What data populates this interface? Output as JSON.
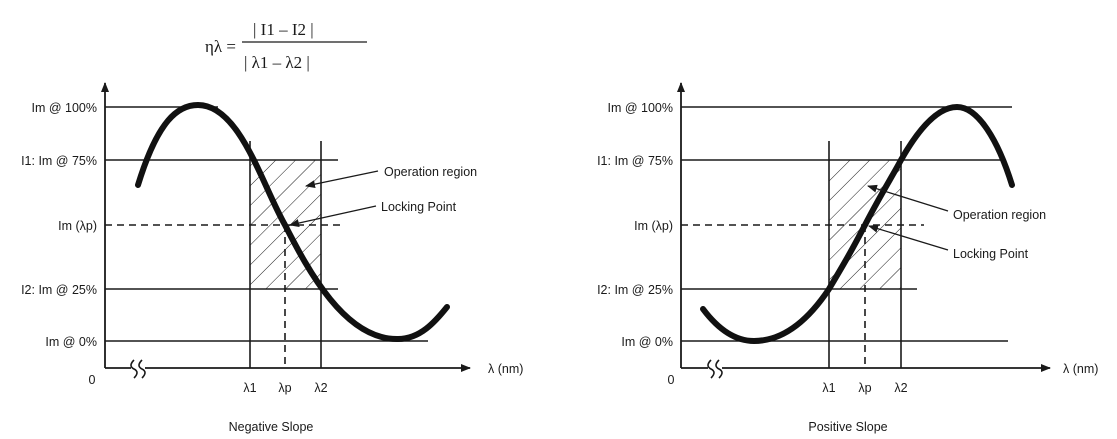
{
  "formula": {
    "lhs": "ηλ =",
    "numerator": "| I1 – I2 |",
    "denominator": "| λ1 – λ2 |"
  },
  "panels": [
    {
      "id": "negative",
      "caption": "Negative Slope",
      "slope": "negative",
      "y_labels": {
        "l100": "Im @ 100%",
        "l75": "I1: Im @ 75%",
        "llock": "Im (λp)",
        "l25": "I2: Im @ 25%",
        "l0": "Im @ 0%"
      },
      "origin": "0",
      "x_unit": "λ (nm)",
      "x_ticks": [
        "λ1",
        "λp",
        "λ2"
      ],
      "annotations": {
        "operation_region": "Operation region",
        "locking_point": "Locking Point"
      }
    },
    {
      "id": "positive",
      "caption": "Positive Slope",
      "slope": "positive",
      "y_labels": {
        "l100": "Im @ 100%",
        "l75": "I1: Im @ 75%",
        "llock": "Im (λp)",
        "l25": "I2: Im @ 25%",
        "l0": "Im @ 0%"
      },
      "origin": "0",
      "x_unit": "λ (nm)",
      "x_ticks": [
        "λ1",
        "λp",
        "λ2"
      ],
      "annotations": {
        "operation_region": "Operation region",
        "locking_point": "Locking Point"
      }
    }
  ]
}
